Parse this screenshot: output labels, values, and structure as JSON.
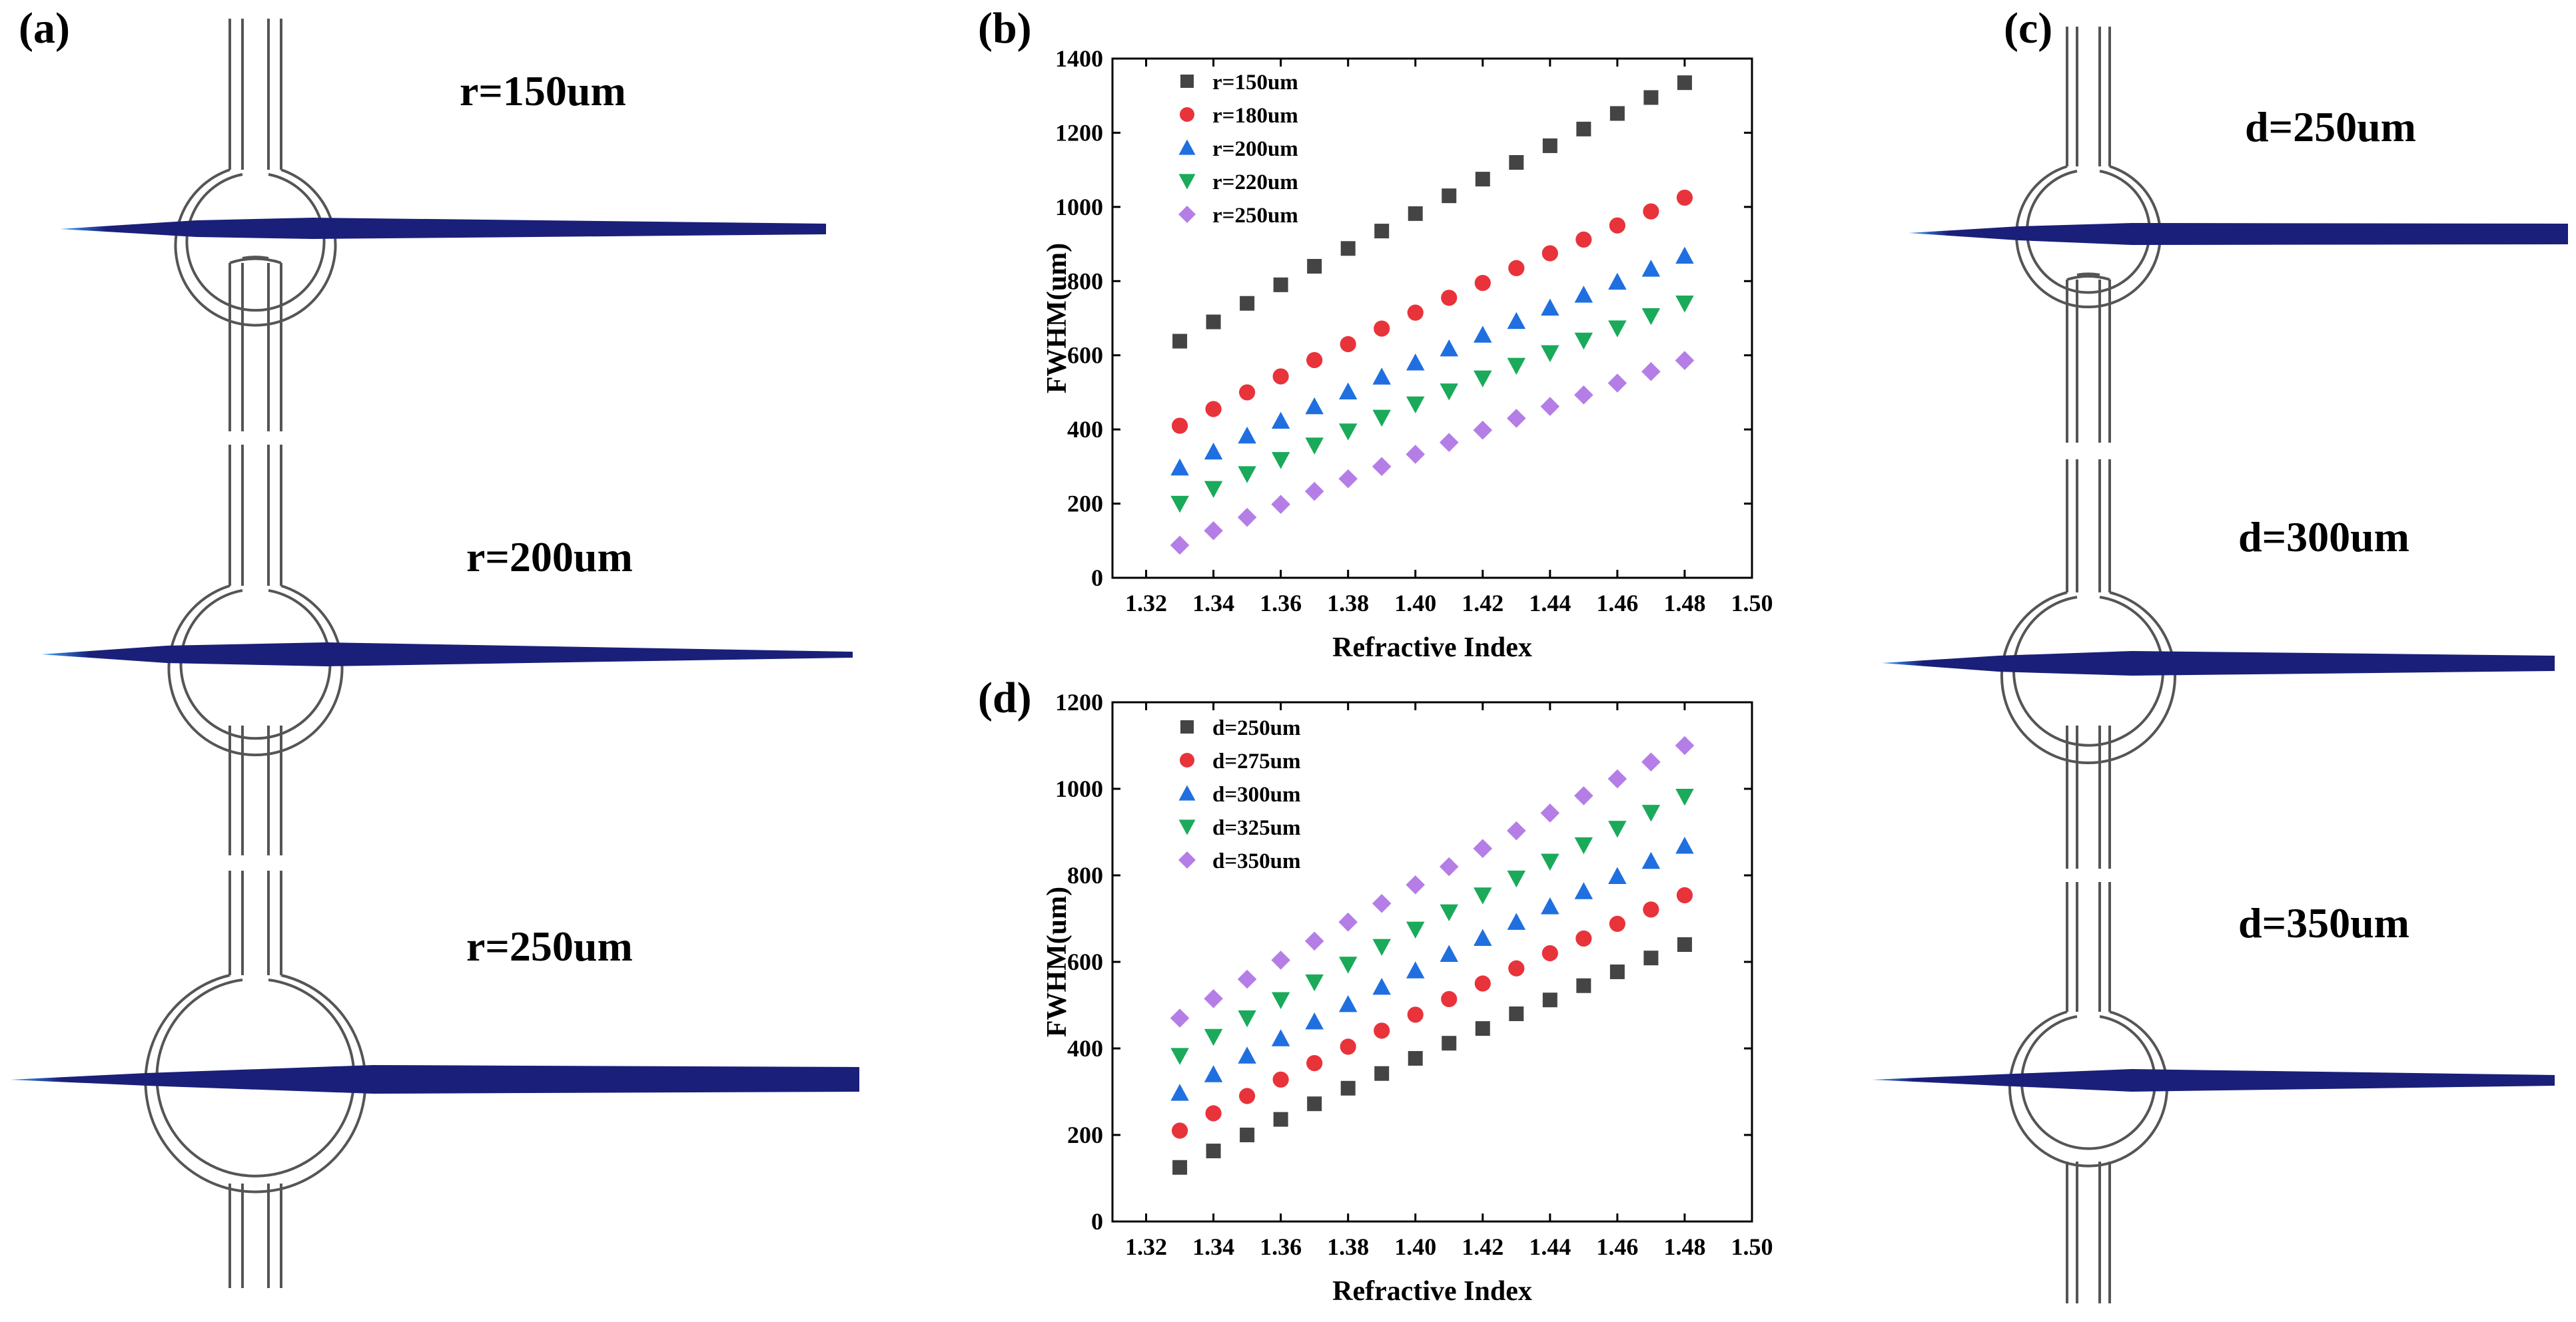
{
  "panels": {
    "a": {
      "label": "(a)",
      "sims": [
        {
          "label": "r=150um"
        },
        {
          "label": "r=200um"
        },
        {
          "label": "r=250um"
        }
      ]
    },
    "c": {
      "label": "(c)",
      "sims": [
        {
          "label": "d=250um"
        },
        {
          "label": "d=300um"
        },
        {
          "label": "d=350um"
        }
      ]
    }
  },
  "colors": {
    "beam": "#1a1f7a",
    "beam_tip": "#3fa6ff",
    "waveguide": "#555555"
  },
  "chart_data": [
    {
      "id": "b",
      "panel_label": "(b)",
      "type": "scatter",
      "xlabel": "Refractive Index",
      "ylabel": "FWHM(um)",
      "xlim": [
        1.31,
        1.5
      ],
      "ylim": [
        0,
        1400
      ],
      "xticks": [
        "1.32",
        "1.34",
        "1.36",
        "1.38",
        "1.40",
        "1.42",
        "1.44",
        "1.46",
        "1.48",
        "1.50"
      ],
      "yticks": [
        "0",
        "200",
        "400",
        "600",
        "800",
        "1000",
        "1200",
        "1400"
      ],
      "legend_position": "top-left",
      "x": [
        1.33,
        1.34,
        1.35,
        1.36,
        1.37,
        1.38,
        1.39,
        1.4,
        1.41,
        1.42,
        1.43,
        1.44,
        1.45,
        1.46,
        1.47,
        1.48
      ],
      "series": [
        {
          "name": "r=150um",
          "marker": "square",
          "color": "#444444",
          "values": [
            638,
            690,
            740,
            790,
            840,
            888,
            935,
            982,
            1030,
            1075,
            1120,
            1165,
            1210,
            1252,
            1295,
            1335
          ]
        },
        {
          "name": "r=180um",
          "marker": "circle",
          "color": "#e8333a",
          "values": [
            410,
            455,
            500,
            543,
            587,
            630,
            672,
            715,
            755,
            795,
            835,
            875,
            912,
            950,
            988,
            1025
          ]
        },
        {
          "name": "r=200um",
          "marker": "triangle-up",
          "color": "#1f6fe0",
          "values": [
            297,
            340,
            383,
            423,
            462,
            502,
            542,
            580,
            618,
            655,
            692,
            728,
            763,
            798,
            833,
            868
          ]
        },
        {
          "name": "r=220um",
          "marker": "triangle-down",
          "color": "#1aaa5a",
          "values": [
            200,
            240,
            280,
            318,
            357,
            395,
            432,
            468,
            503,
            538,
            572,
            606,
            640,
            673,
            706,
            740
          ]
        },
        {
          "name": "r=250um",
          "marker": "diamond",
          "color": "#b57ee6",
          "values": [
            88,
            127,
            163,
            198,
            233,
            267,
            300,
            333,
            365,
            398,
            430,
            462,
            493,
            525,
            556,
            586
          ]
        }
      ]
    },
    {
      "id": "d",
      "panel_label": "(d)",
      "type": "scatter",
      "xlabel": "Refractive Index",
      "ylabel": "FWHM(um)",
      "xlim": [
        1.31,
        1.5
      ],
      "ylim": [
        0,
        1200
      ],
      "xticks": [
        "1.32",
        "1.34",
        "1.36",
        "1.38",
        "1.40",
        "1.42",
        "1.44",
        "1.46",
        "1.48",
        "1.50"
      ],
      "yticks": [
        "0",
        "200",
        "400",
        "600",
        "800",
        "1000",
        "1200"
      ],
      "legend_position": "top-left",
      "x": [
        1.33,
        1.34,
        1.35,
        1.36,
        1.37,
        1.38,
        1.39,
        1.4,
        1.41,
        1.42,
        1.43,
        1.44,
        1.45,
        1.46,
        1.47,
        1.48
      ],
      "series": [
        {
          "name": "d=250um",
          "marker": "square",
          "color": "#444444",
          "values": [
            125,
            163,
            200,
            236,
            272,
            308,
            342,
            377,
            412,
            446,
            480,
            512,
            545,
            577,
            609,
            640
          ]
        },
        {
          "name": "d=275um",
          "marker": "circle",
          "color": "#e8333a",
          "values": [
            210,
            250,
            290,
            328,
            366,
            404,
            441,
            478,
            514,
            550,
            585,
            620,
            654,
            688,
            721,
            754
          ]
        },
        {
          "name": "d=300um",
          "marker": "triangle-up",
          "color": "#1f6fe0",
          "values": [
            297,
            340,
            383,
            423,
            462,
            502,
            542,
            580,
            618,
            655,
            692,
            728,
            763,
            798,
            833,
            868
          ]
        },
        {
          "name": "d=325um",
          "marker": "triangle-down",
          "color": "#1aaa5a",
          "values": [
            383,
            427,
            470,
            512,
            553,
            594,
            635,
            675,
            715,
            754,
            793,
            832,
            870,
            908,
            945,
            982
          ]
        },
        {
          "name": "d=350um",
          "marker": "diamond",
          "color": "#b57ee6",
          "values": [
            470,
            515,
            560,
            604,
            648,
            692,
            735,
            778,
            820,
            862,
            903,
            944,
            984,
            1023,
            1062,
            1100
          ]
        }
      ]
    }
  ]
}
